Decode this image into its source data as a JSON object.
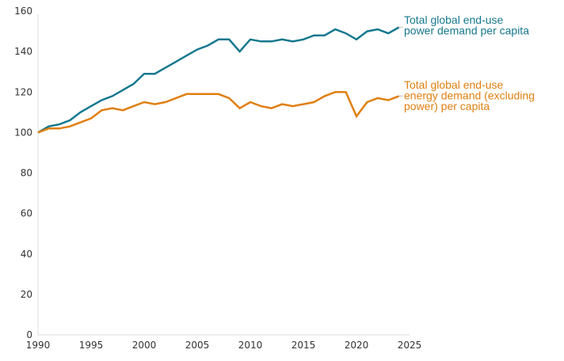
{
  "chart_data": {
    "type": "line",
    "title": "",
    "xlabel": "",
    "ylabel": "",
    "xlim": [
      1990,
      2025
    ],
    "ylim": [
      0,
      160
    ],
    "grid": false,
    "x_ticks": [
      1990,
      1995,
      2000,
      2005,
      2010,
      2015,
      2020,
      2025
    ],
    "y_ticks": [
      0,
      20,
      40,
      60,
      80,
      100,
      120,
      140,
      160
    ],
    "x": [
      1990,
      1991,
      1992,
      1993,
      1994,
      1995,
      1996,
      1997,
      1998,
      1999,
      2000,
      2001,
      2002,
      2003,
      2004,
      2005,
      2006,
      2007,
      2008,
      2009,
      2010,
      2011,
      2012,
      2013,
      2014,
      2015,
      2016,
      2017,
      2018,
      2019,
      2020,
      2021,
      2022,
      2023,
      2024
    ],
    "series": [
      {
        "name": "Total global end-use power demand per capita",
        "label_lines": [
          "Total global end-use",
          "power demand per capita"
        ],
        "color": "#16788f",
        "values": [
          100,
          103,
          104,
          106,
          110,
          113,
          116,
          118,
          121,
          124,
          129,
          129,
          132,
          135,
          138,
          141,
          143,
          146,
          146,
          140,
          146,
          145,
          145,
          146,
          145,
          146,
          148,
          148,
          151,
          149,
          146,
          150,
          151,
          149,
          152
        ]
      },
      {
        "name": "Total global end-use energy demand (excluding power) per capita",
        "label_lines": [
          "Total global end-use",
          "energy demand (excluding",
          "power) per capita"
        ],
        "color": "#e07f10",
        "values": [
          100,
          102,
          102,
          103,
          105,
          107,
          111,
          112,
          111,
          113,
          115,
          114,
          115,
          117,
          119,
          119,
          119,
          119,
          117,
          112,
          115,
          113,
          112,
          114,
          113,
          114,
          115,
          118,
          120,
          120,
          108,
          115,
          117,
          116,
          118
        ]
      }
    ],
    "legend": "right, inline at line ends"
  }
}
